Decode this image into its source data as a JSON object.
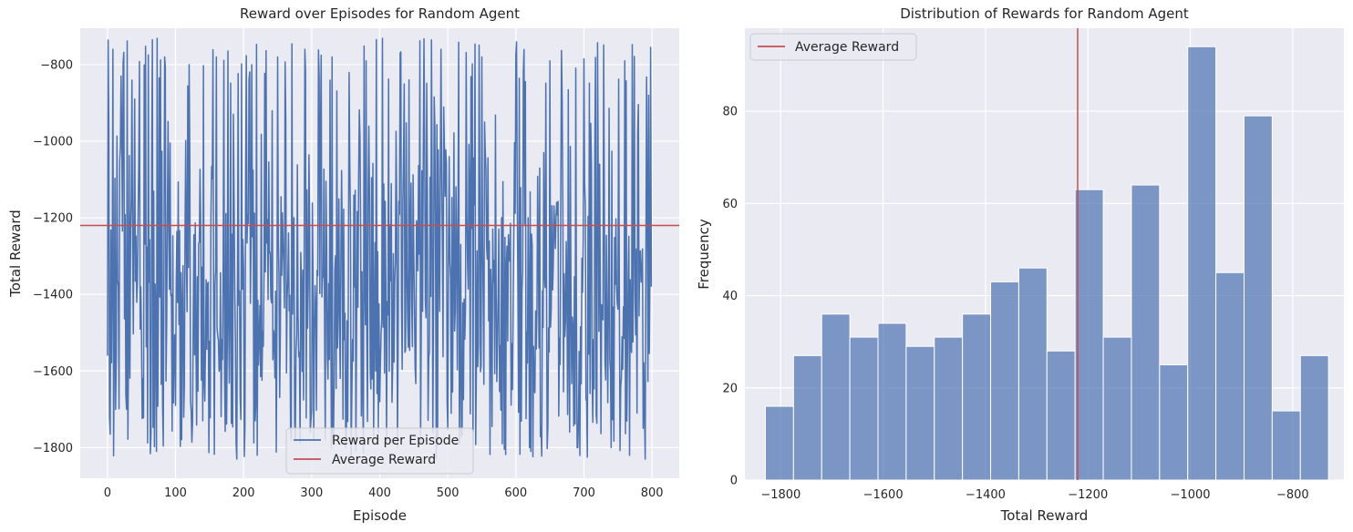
{
  "colors": {
    "background": "#eaeaf2",
    "grid": "#ffffff",
    "series": "#4c72b0",
    "average": "#c44e52"
  },
  "chart_data": [
    {
      "type": "line",
      "title": "Reward over Episodes for Random Agent",
      "xlabel": "Episode",
      "ylabel": "Total Reward",
      "xlim": [
        -40,
        840
      ],
      "ylim": [
        -1880,
        -705
      ],
      "xticks": [
        0,
        100,
        200,
        300,
        400,
        500,
        600,
        700,
        800
      ],
      "yticks": [
        -1800,
        -1600,
        -1400,
        -1200,
        -1000,
        -800
      ],
      "grid": true,
      "legend_position": "lower center",
      "series": [
        {
          "name": "Reward per Episode",
          "note": "800 episodes; values oscillate between about -1830 and -730 (random-agent rewards)",
          "x_range": [
            0,
            799
          ],
          "y_min": -1830,
          "y_max": -730,
          "sample_points": [
            [
              0,
              -1560
            ],
            [
              2,
              -965
            ],
            [
              4,
              -1765
            ],
            [
              8,
              -760
            ],
            [
              12,
              -1700
            ],
            [
              20,
              -830
            ],
            [
              28,
              -1700
            ],
            [
              40,
              -890
            ],
            [
              52,
              -1620
            ],
            [
              60,
              -775
            ],
            [
              66,
              -735
            ],
            [
              72,
              -1810
            ],
            [
              84,
              -780
            ],
            [
              100,
              -1690
            ],
            [
              120,
              -800
            ],
            [
              140,
              -1730
            ],
            [
              160,
              -780
            ],
            [
              190,
              -1830
            ],
            [
              212,
              -800
            ],
            [
              220,
              -1820
            ],
            [
              250,
              -780
            ],
            [
              270,
              -1780
            ],
            [
              290,
              -760
            ],
            [
              300,
              -1700
            ],
            [
              330,
              -780
            ],
            [
              350,
              -1800
            ],
            [
              380,
              -790
            ],
            [
              400,
              -1680
            ],
            [
              430,
              -770
            ],
            [
              460,
              -1790
            ],
            [
              490,
              -760
            ],
            [
              520,
              -1770
            ],
            [
              550,
              -780
            ],
            [
              580,
              -1790
            ],
            [
              600,
              -775
            ],
            [
              620,
              -1800
            ],
            [
              650,
              -790
            ],
            [
              690,
              -1800
            ],
            [
              700,
              -785
            ],
            [
              740,
              -1800
            ],
            [
              760,
              -790
            ],
            [
              790,
              -1830
            ],
            [
              795,
              -880
            ],
            [
              799,
              -1380
            ]
          ]
        },
        {
          "name": "Average Reward",
          "value": -1220
        }
      ]
    },
    {
      "type": "bar",
      "title": "Distribution of Rewards for Random Agent",
      "xlabel": "Total Reward",
      "ylabel": "Frequency",
      "xlim": [
        -1870,
        -700
      ],
      "ylim": [
        0,
        98
      ],
      "xticks": [
        -1800,
        -1600,
        -1400,
        -1200,
        -1000,
        -800
      ],
      "yticks": [
        0,
        20,
        40,
        60,
        80
      ],
      "grid": true,
      "legend_position": "upper left",
      "bin_start": -1830,
      "bin_width": 55,
      "values": [
        16,
        27,
        36,
        31,
        34,
        29,
        31,
        36,
        43,
        46,
        28,
        63,
        31,
        64,
        25,
        94,
        45,
        79,
        15,
        27
      ],
      "series": [
        {
          "name": "Average Reward",
          "value": -1220
        }
      ]
    }
  ]
}
